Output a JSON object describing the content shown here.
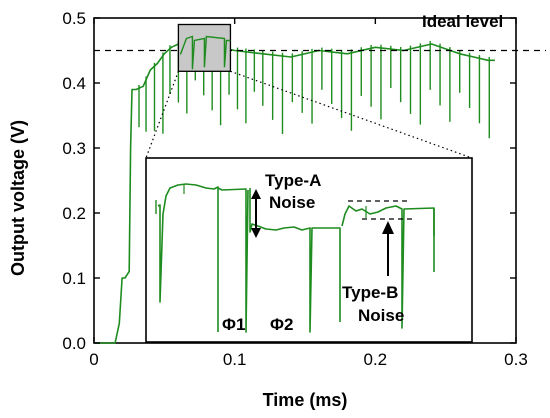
{
  "chart_data": {
    "type": "line",
    "xlabel": "Time (ms)",
    "ylabel": "Output voltage (V)",
    "xlim": [
      0,
      0.3
    ],
    "ylim": [
      0,
      0.5
    ],
    "x_ticks": [
      "0",
      "0.1",
      "0.2",
      "0.3"
    ],
    "y_ticks": [
      "0.0",
      "0.1",
      "0.2",
      "0.3",
      "0.4",
      "0.5"
    ],
    "x_tick_values": [
      0,
      0.1,
      0.2,
      0.3
    ],
    "y_tick_values": [
      0,
      0.1,
      0.2,
      0.3,
      0.4,
      0.5
    ],
    "reference_line": {
      "label": "Ideal level",
      "y": 0.45,
      "style": "dashed"
    },
    "series": [
      {
        "color": "#1e8c1e",
        "x": [
          0,
          0.015,
          0.018,
          0.02,
          0.022,
          0.025,
          0.026,
          0.027,
          0.03,
          0.035,
          0.04,
          0.045,
          0.05,
          0.055,
          0.06,
          0.07,
          0.08,
          0.09,
          0.1,
          0.12,
          0.14,
          0.16,
          0.18,
          0.2,
          0.22,
          0.24,
          0.26,
          0.27,
          0.28,
          0.285
        ],
        "y": [
          0,
          0,
          0.03,
          0.1,
          0.1,
          0.11,
          0.3,
          0.39,
          0.39,
          0.395,
          0.42,
          0.43,
          0.445,
          0.455,
          0.46,
          0.465,
          0.46,
          0.455,
          0.45,
          0.445,
          0.44,
          0.45,
          0.445,
          0.455,
          0.45,
          0.46,
          0.445,
          0.44,
          0.435,
          0.435
        ]
      }
    ],
    "dips": [
      0.032,
      0.037,
      0.043,
      0.049,
      0.054,
      0.06,
      0.066,
      0.072,
      0.078,
      0.084,
      0.09,
      0.096,
      0.102,
      0.108,
      0.114,
      0.12,
      0.127,
      0.134,
      0.141,
      0.148,
      0.155,
      0.162,
      0.169,
      0.176,
      0.183,
      0.19,
      0.197,
      0.204,
      0.211,
      0.218,
      0.225,
      0.232,
      0.239,
      0.246,
      0.253,
      0.26,
      0.267,
      0.274,
      0.281
    ],
    "inset": {
      "labels": {
        "phase1": "Φ1",
        "phase2": "Φ2",
        "typeA_1": "Type-A",
        "typeA_2": "Noise",
        "typeB_1": "Type-B",
        "typeB_2": "Noise"
      }
    }
  }
}
